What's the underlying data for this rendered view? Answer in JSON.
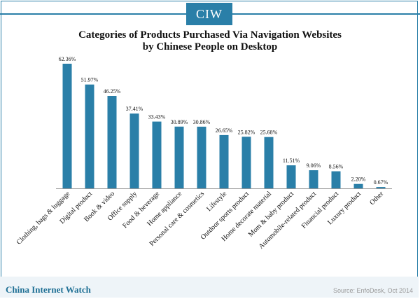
{
  "header": {
    "logo_text": "CIW"
  },
  "footer": {
    "brand": "China Internet Watch",
    "source": "Source: EnfoDesk, Oct 2014"
  },
  "colors": {
    "bar": "#2a7fa8",
    "accent": "#2a7fa8"
  },
  "chart_data": {
    "type": "bar",
    "title": "Categories of Products Purchased Via Navigation Websites",
    "subtitle": "by Chinese People on Desktop",
    "xlabel": "",
    "ylabel": "",
    "categories": [
      "Clothing, bags & luggage",
      "Digital product",
      "Book & video",
      "Office supply",
      "Food & beverage",
      "Home appliance",
      "Personal care & cosmetics",
      "Lifestyle",
      "Outdoor sports product",
      "Home decorate material",
      "Mom & baby product",
      "Automobile-related product",
      "Financial product",
      "Luxury product",
      "Other"
    ],
    "values": [
      62.36,
      51.97,
      46.25,
      37.41,
      33.43,
      30.89,
      30.86,
      26.65,
      25.82,
      25.68,
      11.51,
      9.06,
      8.56,
      2.2,
      0.67
    ],
    "value_labels": [
      "62.36%",
      "51.97%",
      "46.25%",
      "37.41%",
      "33.43%",
      "30.89%",
      "30.86%",
      "26.65%",
      "25.82%",
      "25.68%",
      "11.51%",
      "9.06%",
      "8.56%",
      "2.20%",
      "0.67%"
    ],
    "ylim": [
      0,
      62.36
    ],
    "grid": false,
    "legend": "none"
  }
}
